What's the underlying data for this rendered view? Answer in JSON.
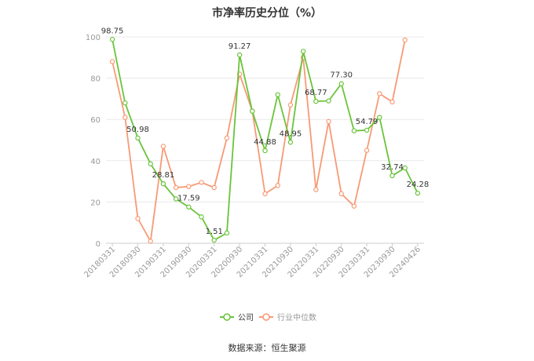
{
  "title": "市净率历史分位（%）",
  "source": "数据来源：恒生聚源",
  "colors": {
    "company": "#6ac43b",
    "industry": "#f79a75",
    "grid": "#e8e8e8",
    "axis": "#cccccc"
  },
  "chart_data": {
    "type": "line",
    "title": "市净率历史分位（%）",
    "ylim": [
      0,
      100
    ],
    "yticks": [
      0,
      20,
      40,
      60,
      80,
      100
    ],
    "x_tick_labels": [
      "20180331",
      "20180930",
      "20190331",
      "20190930",
      "20200331",
      "20200930",
      "20210331",
      "20210930",
      "20220331",
      "20220930",
      "20230331",
      "20230930",
      "20240426"
    ],
    "grid": true,
    "legend_position": "bottom",
    "series": [
      {
        "name": "公司",
        "color": "#6ac43b",
        "values": [
          98.75,
          68.0,
          50.98,
          38.5,
          28.81,
          21.5,
          17.59,
          12.8,
          1.51,
          5.0,
          91.27,
          64.0,
          44.88,
          72.0,
          48.95,
          93.0,
          68.77,
          69.0,
          77.3,
          54.5,
          54.79,
          61.0,
          32.74,
          36.5,
          24.28
        ],
        "labels": {
          "0": "98.75",
          "2": "50.98",
          "4": "28.81",
          "6": "17.59",
          "8": "1.51",
          "10": "91.27",
          "12": "44.88",
          "14": "48.95",
          "16": "68.77",
          "18": "77.30",
          "20": "54.79",
          "22": "32.74",
          "24": "24.28"
        }
      },
      {
        "name": "行业中位数",
        "color": "#f79a75",
        "values": [
          88.0,
          61.0,
          12.0,
          1.0,
          47.0,
          27.0,
          27.5,
          29.5,
          27.0,
          51.0,
          82.0,
          64.0,
          24.0,
          28.0,
          67.0,
          90.0,
          26.0,
          59.0,
          24.0,
          18.0,
          45.0,
          72.5,
          68.5,
          98.5,
          null
        ]
      }
    ]
  }
}
